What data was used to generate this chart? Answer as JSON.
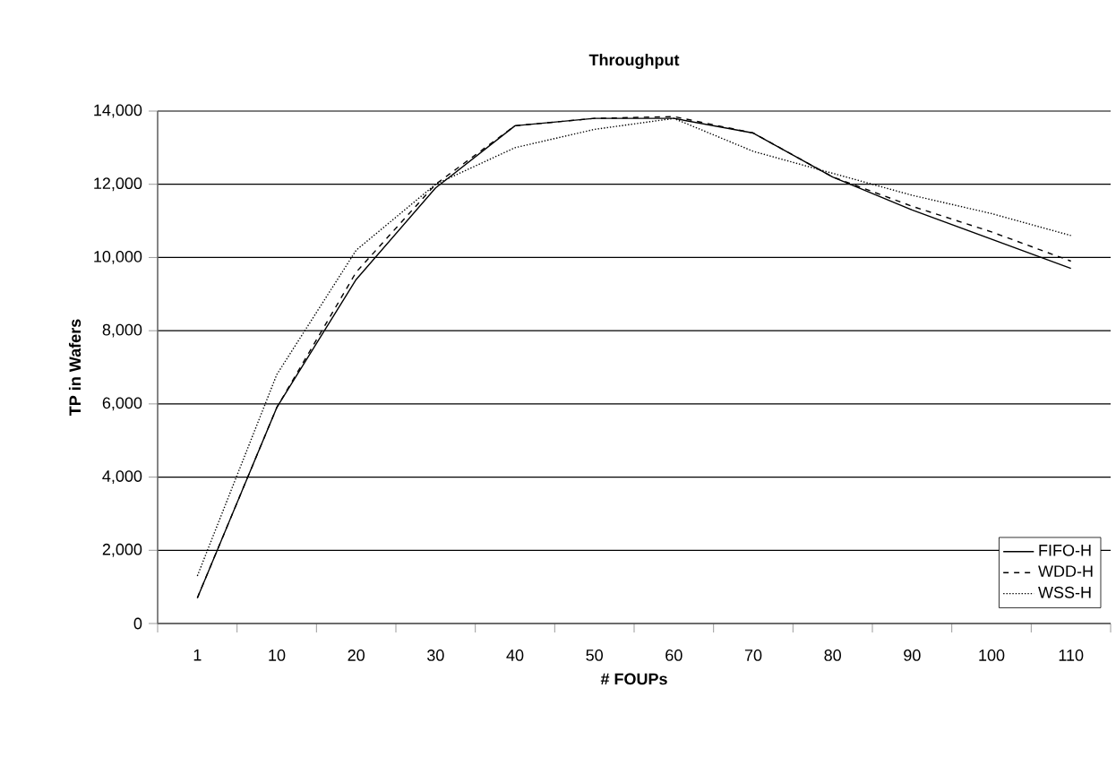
{
  "chart_data": {
    "type": "line",
    "title": "Throughput",
    "xlabel": "# FOUPs",
    "ylabel": "TP in Wafers",
    "categories": [
      "1",
      "10",
      "20",
      "30",
      "40",
      "50",
      "60",
      "70",
      "80",
      "90",
      "100",
      "110"
    ],
    "series": [
      {
        "name": "FIFO-H",
        "color": "#000000",
        "line_style": "solid",
        "values": [
          700,
          5900,
          9400,
          11900,
          13600,
          13800,
          13800,
          13400,
          12200,
          11300,
          10500,
          9700
        ]
      },
      {
        "name": "WDD-H",
        "color": "#000000",
        "line_style": "dashed",
        "values": [
          700,
          5900,
          9600,
          12000,
          13600,
          13800,
          13850,
          13400,
          12200,
          11400,
          10700,
          9900
        ]
      },
      {
        "name": "WSS-H",
        "color": "#000000",
        "line_style": "dotted",
        "values": [
          1300,
          6800,
          10200,
          12000,
          13000,
          13500,
          13800,
          12900,
          12300,
          11700,
          11200,
          10600
        ]
      }
    ],
    "ylim": [
      0,
      14000
    ],
    "yticks": [
      {
        "value": 0,
        "label": "0"
      },
      {
        "value": 2000,
        "label": "2,000"
      },
      {
        "value": 4000,
        "label": "4,000"
      },
      {
        "value": 6000,
        "label": "6,000"
      },
      {
        "value": 8000,
        "label": "8,000"
      },
      {
        "value": 10000,
        "label": "10,000"
      },
      {
        "value": 12000,
        "label": "12,000"
      },
      {
        "value": 14000,
        "label": "14,000"
      }
    ],
    "grid": "y",
    "legend": "bottom right",
    "marker": "none"
  }
}
